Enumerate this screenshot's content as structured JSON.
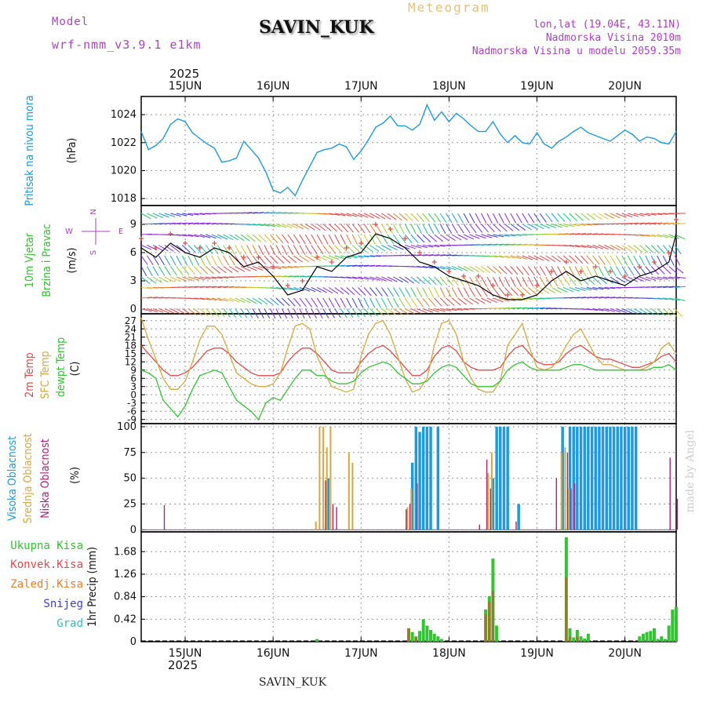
{
  "header": {
    "model_label": "Model",
    "model_value": "wrf-nmm_v3.9.1  e1km",
    "station": "SAVIN_KUK",
    "meteogram": "Meteogram",
    "lonlat": "lon,lat (19.04E, 43.11N)",
    "elevation": "Nadmorska Visina 2010m",
    "model_elevation": "Nadmorska Visina u modelu 2059.35m",
    "footer_station": "SAVIN_KUK",
    "watermark": "made by Angel",
    "year_top": "2025",
    "year_bottom": "2025"
  },
  "colors": {
    "pressure": "#1e9bdc",
    "t2m": "#e34a4a",
    "sfc": "#d8a840",
    "dew": "#33c433",
    "high_cloud": "#1e9bdc",
    "mid_cloud": "#d8a840",
    "low_cloud": "#b0207a",
    "total_precip": "#33c433",
    "conv_precip": "#e34a4a",
    "frozen_precip": "#e8802a",
    "snow": "#3b3bdc",
    "hail": "#33c4b0"
  },
  "chart_data": [
    {
      "type": "line",
      "panel": "pressure",
      "ylabel_lines": [
        "Pritisak na nivou mora"
      ],
      "unit": "(hPa)",
      "x": [
        0,
        2,
        4,
        6,
        8,
        10,
        12,
        14,
        16,
        18,
        20,
        22,
        24,
        26,
        28,
        30,
        32,
        34,
        36,
        38,
        40,
        42,
        44,
        46,
        48,
        50,
        52,
        54,
        56,
        58,
        60,
        62,
        64,
        66,
        68,
        70,
        72,
        74,
        76,
        78,
        80,
        82,
        84,
        86,
        88,
        90,
        92,
        94,
        96,
        98,
        100,
        102,
        104,
        106,
        108,
        110,
        112,
        114,
        116,
        118,
        120,
        122,
        124,
        126,
        128,
        130,
        132,
        134,
        136,
        138,
        140,
        142,
        144,
        146
      ],
      "values": [
        1022.8,
        1021.5,
        1021.8,
        1022.3,
        1023.3,
        1023.7,
        1023.5,
        1022.7,
        1022.3,
        1021.9,
        1021.6,
        1020.6,
        1020.7,
        1020.9,
        1022.1,
        1021.5,
        1020.9,
        1019.9,
        1018.6,
        1018.4,
        1018.8,
        1018.2,
        1019.3,
        1020.3,
        1021.3,
        1021.5,
        1021.6,
        1021.9,
        1021.7,
        1020.8,
        1021.4,
        1022.2,
        1023.1,
        1023.4,
        1023.9,
        1023.2,
        1023.2,
        1022.9,
        1023.3,
        1024.7,
        1023.6,
        1024.2,
        1023.5,
        1024.1,
        1023.7,
        1023.2,
        1022.8,
        1022.8,
        1023.5,
        1022.6,
        1022.0,
        1022.5,
        1022.0,
        1021.9,
        1022.7,
        1021.9,
        1021.6,
        1022.1,
        1022.4,
        1022.8,
        1023.1,
        1022.7,
        1022.5,
        1022.3,
        1022.1,
        1022.5,
        1022.9,
        1022.6,
        1022.1,
        1022.4,
        1022.3,
        1022.0,
        1021.9,
        1022.8
      ],
      "ylim": [
        1017.5,
        1025.3
      ],
      "yticks": [
        1018,
        1020,
        1022,
        1024
      ]
    },
    {
      "type": "line",
      "panel": "wind",
      "ylabel_lines": [
        "10m Vjetar",
        "Brzina i Pravac"
      ],
      "unit": "(m/s)",
      "compass": {
        "n": "N",
        "s": "S",
        "w": "W",
        "e": "E"
      },
      "x": [
        0,
        4,
        8,
        12,
        16,
        20,
        24,
        28,
        32,
        36,
        40,
        44,
        48,
        52,
        56,
        60,
        64,
        68,
        72,
        76,
        80,
        84,
        88,
        92,
        96,
        100,
        104,
        108,
        112,
        116,
        120,
        124,
        128,
        132,
        136,
        140,
        144,
        146
      ],
      "speed": [
        6.5,
        5.5,
        7.0,
        6.0,
        5.5,
        6.5,
        6.0,
        4.5,
        5.0,
        3.5,
        1.5,
        2.0,
        4.5,
        4.0,
        5.5,
        6.0,
        8.0,
        7.5,
        6.5,
        5.0,
        4.5,
        3.5,
        3.0,
        2.5,
        1.5,
        1.0,
        1.0,
        1.5,
        3.0,
        4.0,
        3.0,
        3.5,
        3.0,
        2.5,
        3.5,
        4.0,
        5.0,
        8.0
      ],
      "gust": [
        7.5,
        6.5,
        8.0,
        7.0,
        6.5,
        7.0,
        6.5,
        5.5,
        5.5,
        4.5,
        2.5,
        3.0,
        5.5,
        5.0,
        6.5,
        7.0,
        9.0,
        8.5,
        7.5,
        6.0,
        5.0,
        4.0,
        3.5,
        3.5,
        2.5,
        1.5,
        1.5,
        2.5,
        4.0,
        5.0,
        4.0,
        4.5,
        4.0,
        3.5,
        4.5,
        5.0,
        6.0,
        9.5
      ],
      "ylim": [
        -0.5,
        11.0
      ],
      "yticks": [
        0,
        3,
        6,
        9
      ]
    },
    {
      "type": "line",
      "panel": "temperature",
      "ylabel_lines": [
        "2m Temp",
        "SFC Temp",
        "dewpt Temp"
      ],
      "unit": "(C)",
      "x": [
        0,
        2,
        4,
        6,
        8,
        10,
        12,
        14,
        16,
        18,
        20,
        22,
        24,
        26,
        28,
        30,
        32,
        34,
        36,
        38,
        40,
        42,
        44,
        46,
        48,
        50,
        52,
        54,
        56,
        58,
        60,
        62,
        64,
        66,
        68,
        70,
        72,
        74,
        76,
        78,
        80,
        82,
        84,
        86,
        88,
        90,
        92,
        94,
        96,
        98,
        100,
        102,
        104,
        106,
        108,
        110,
        112,
        114,
        116,
        118,
        120,
        122,
        124,
        126,
        128,
        130,
        132,
        134,
        136,
        138,
        140,
        142,
        144,
        146
      ],
      "series": [
        {
          "name": "2m Temp",
          "values": [
            18,
            15,
            12,
            9,
            7,
            7,
            8,
            10,
            13,
            16,
            17,
            17,
            15,
            12,
            10,
            8,
            7,
            7,
            7,
            8,
            12,
            15,
            17,
            17,
            15,
            12,
            9,
            8,
            8,
            8,
            12,
            15,
            17,
            18,
            16,
            13,
            10,
            7,
            7,
            9,
            14,
            17,
            18,
            16,
            12,
            10,
            9,
            9,
            9,
            10,
            14,
            17,
            18,
            15,
            12,
            11,
            11,
            12,
            15,
            17,
            18,
            16,
            14,
            13,
            13,
            12,
            11,
            10,
            10,
            11,
            12,
            14,
            15,
            12
          ]
        },
        {
          "name": "SFC Temp",
          "values": [
            28,
            20,
            13,
            6,
            2,
            2,
            5,
            12,
            20,
            25,
            25,
            22,
            15,
            8,
            6,
            4,
            3,
            3,
            4,
            8,
            17,
            25,
            26,
            24,
            14,
            8,
            3,
            2,
            1,
            2,
            14,
            22,
            26,
            27,
            22,
            14,
            6,
            1,
            2,
            6,
            18,
            26,
            27,
            22,
            12,
            6,
            2,
            1,
            1,
            5,
            18,
            22,
            26,
            17,
            10,
            9,
            10,
            13,
            18,
            22,
            24,
            19,
            14,
            11,
            11,
            10,
            9,
            9,
            9,
            10,
            12,
            17,
            19,
            15
          ]
        },
        {
          "name": "dewpt Temp",
          "values": [
            9,
            8,
            6,
            -2,
            -5,
            -8,
            -4,
            2,
            7,
            8,
            9,
            8,
            3,
            -2,
            -4,
            -6,
            -9,
            -3,
            -1,
            -2,
            2,
            6,
            9,
            9,
            7,
            7,
            5,
            4,
            4,
            5,
            8,
            10,
            11,
            12,
            11,
            8,
            6,
            4,
            4,
            5,
            8,
            10,
            11,
            10,
            7,
            4,
            3,
            3,
            3,
            5,
            9,
            11,
            12,
            10,
            9,
            9,
            9,
            9,
            10,
            11,
            11,
            10,
            9,
            9,
            9,
            9,
            9,
            9,
            9,
            9,
            10,
            10,
            11,
            9
          ]
        }
      ],
      "ylim": [
        -10.5,
        29.5
      ],
      "yticks": [
        -9,
        -6,
        -3,
        0,
        3,
        6,
        9,
        12,
        15,
        18,
        21,
        24,
        27
      ]
    },
    {
      "type": "bar",
      "panel": "clouds",
      "ylabel_lines": [
        "Visoka Oblacnost",
        "Srednja Oblacnost",
        "Niska Oblacnost"
      ],
      "unit": "(%)",
      "series": [
        {
          "name": "Visoka Oblacnost",
          "points": [
            [
              51,
              50
            ],
            [
              74,
              65
            ],
            [
              75,
              100
            ],
            [
              76,
              95
            ],
            [
              77,
              100
            ],
            [
              78,
              100
            ],
            [
              79,
              100
            ],
            [
              81,
              100
            ],
            [
              96,
              50
            ],
            [
              97,
              100
            ],
            [
              98,
              100
            ],
            [
              99,
              100
            ],
            [
              100,
              100
            ],
            [
              103,
              25
            ],
            [
              115,
              100
            ],
            [
              117,
              100
            ],
            [
              118,
              100
            ],
            [
              119,
              100
            ],
            [
              120,
              100
            ],
            [
              121,
              100
            ],
            [
              122,
              100
            ],
            [
              123,
              100
            ],
            [
              124,
              100
            ],
            [
              125,
              100
            ],
            [
              126,
              100
            ],
            [
              127,
              100
            ],
            [
              128,
              100
            ],
            [
              129,
              100
            ],
            [
              130,
              100
            ],
            [
              131,
              100
            ],
            [
              132,
              100
            ],
            [
              133,
              100
            ],
            [
              134,
              100
            ],
            [
              135,
              100
            ]
          ]
        },
        {
          "name": "Srednja Oblacnost",
          "points": [
            [
              48,
              8
            ],
            [
              49,
              100
            ],
            [
              50,
              100
            ],
            [
              51,
              80
            ],
            [
              52,
              100
            ],
            [
              57,
              75
            ],
            [
              58,
              65
            ],
            [
              73,
              22
            ],
            [
              74,
              40
            ],
            [
              95,
              55
            ],
            [
              96,
              75
            ],
            [
              115,
              75
            ],
            [
              116,
              80
            ],
            [
              117,
              40
            ]
          ]
        },
        {
          "name": "Niska Oblacnost",
          "points": [
            [
              6,
              24
            ],
            [
              50,
              48
            ],
            [
              52,
              25
            ],
            [
              53,
              22
            ],
            [
              72,
              20
            ],
            [
              73,
              25
            ],
            [
              75,
              45
            ],
            [
              92,
              5
            ],
            [
              94,
              68
            ],
            [
              95,
              40
            ],
            [
              102,
              8
            ],
            [
              113,
              50
            ],
            [
              116,
              75
            ],
            [
              117,
              40
            ],
            [
              118,
              45
            ],
            [
              144,
              70
            ],
            [
              146,
              30
            ]
          ]
        }
      ],
      "ylim": [
        -2,
        103
      ],
      "yticks": [
        0,
        25,
        50,
        75,
        100
      ]
    },
    {
      "type": "bar",
      "panel": "precipitation",
      "ylabel_lines": [
        "1hr Precip (mm)"
      ],
      "legend": [
        "Ukupna Kisa",
        "Konvek.Kisa",
        "Zaledj.Kisa",
        "Snijeg",
        "Grad"
      ],
      "series": [
        {
          "name": "Ukupna Kisa",
          "points": [
            [
              48,
              0.05
            ],
            [
              73,
              0.25
            ],
            [
              74,
              0.18
            ],
            [
              75,
              0.1
            ],
            [
              76,
              0.2
            ],
            [
              77,
              0.42
            ],
            [
              78,
              0.3
            ],
            [
              79,
              0.22
            ],
            [
              80,
              0.15
            ],
            [
              81,
              0.1
            ],
            [
              82,
              0.05
            ],
            [
              94,
              0.6
            ],
            [
              95,
              0.85
            ],
            [
              96,
              1.55
            ],
            [
              97,
              0.3
            ],
            [
              116,
              1.95
            ],
            [
              117,
              0.25
            ],
            [
              118,
              0.08
            ],
            [
              119,
              0.22
            ],
            [
              120,
              0.1
            ],
            [
              121,
              0.06
            ],
            [
              122,
              0.15
            ],
            [
              136,
              0.1
            ],
            [
              137,
              0.15
            ],
            [
              138,
              0.18
            ],
            [
              139,
              0.2
            ],
            [
              140,
              0.25
            ],
            [
              141,
              0.05
            ],
            [
              142,
              0.1
            ],
            [
              143,
              0.05
            ],
            [
              144,
              0.3
            ],
            [
              145,
              0.6
            ],
            [
              146,
              0.65
            ]
          ]
        },
        {
          "name": "Konvek.Kisa",
          "points": [
            [
              73,
              0.25
            ],
            [
              75,
              0.08
            ],
            [
              94,
              0.5
            ],
            [
              95,
              0.75
            ],
            [
              96,
              0.95
            ],
            [
              116,
              1.2
            ],
            [
              117,
              0.1
            ],
            [
              119,
              0.1
            ]
          ]
        }
      ],
      "ylim": [
        0,
        2.05
      ],
      "yticks": [
        0,
        0.42,
        0.84,
        1.26,
        1.68
      ]
    }
  ],
  "axis": {
    "x_range_hours": [
      0,
      146
    ],
    "day_ticks": [
      {
        "hour": 12,
        "label": "15JUN"
      },
      {
        "hour": 36,
        "label": "16JUN"
      },
      {
        "hour": 60,
        "label": "17JUN"
      },
      {
        "hour": 84,
        "label": "18JUN"
      },
      {
        "hour": 108,
        "label": "19JUN"
      },
      {
        "hour": 132,
        "label": "20JUN"
      }
    ]
  }
}
